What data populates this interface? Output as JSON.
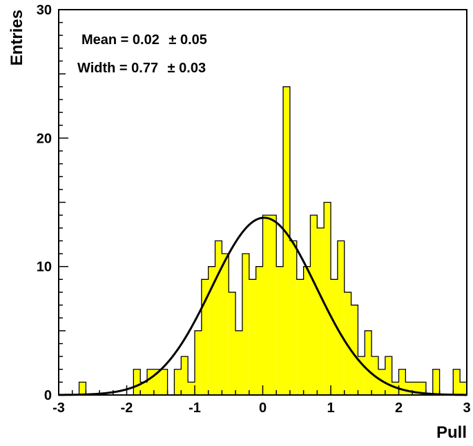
{
  "chart_data": {
    "type": "histogram",
    "title": "",
    "xlabel": "Pull",
    "ylabel": "Entries",
    "xlim": [
      -3,
      3
    ],
    "ylim": [
      0,
      30
    ],
    "x_ticks": [
      "-3",
      "-2",
      "-1",
      "0",
      "1",
      "2",
      "3"
    ],
    "y_ticks": [
      "0",
      "10",
      "20",
      "30"
    ],
    "bin_edges_start": -3.0,
    "bin_width": 0.1,
    "counts": [
      0,
      0,
      0,
      1,
      0,
      0,
      0,
      0,
      0,
      0,
      0,
      2,
      1,
      2,
      2,
      2,
      0,
      2,
      3,
      1,
      5,
      9,
      10,
      12,
      11,
      8,
      5,
      11,
      9,
      10,
      14,
      14,
      10,
      24,
      12,
      9,
      10,
      14,
      13,
      15,
      9,
      12,
      8,
      7,
      3,
      5,
      3,
      2,
      3,
      1,
      2,
      1,
      1,
      1,
      0,
      2,
      0,
      0,
      2,
      1
    ],
    "histogram_fill": "#ffff00",
    "fit": {
      "type": "gaussian",
      "mean": 0.02,
      "sigma": 0.77,
      "amplitude": 13.8,
      "color": "#000000"
    },
    "annotations": {
      "mean_label": "Mean = 0.02",
      "mean_err": "± 0.05",
      "width_label": "Width = 0.77",
      "width_err": "± 0.03"
    },
    "grid": false
  }
}
